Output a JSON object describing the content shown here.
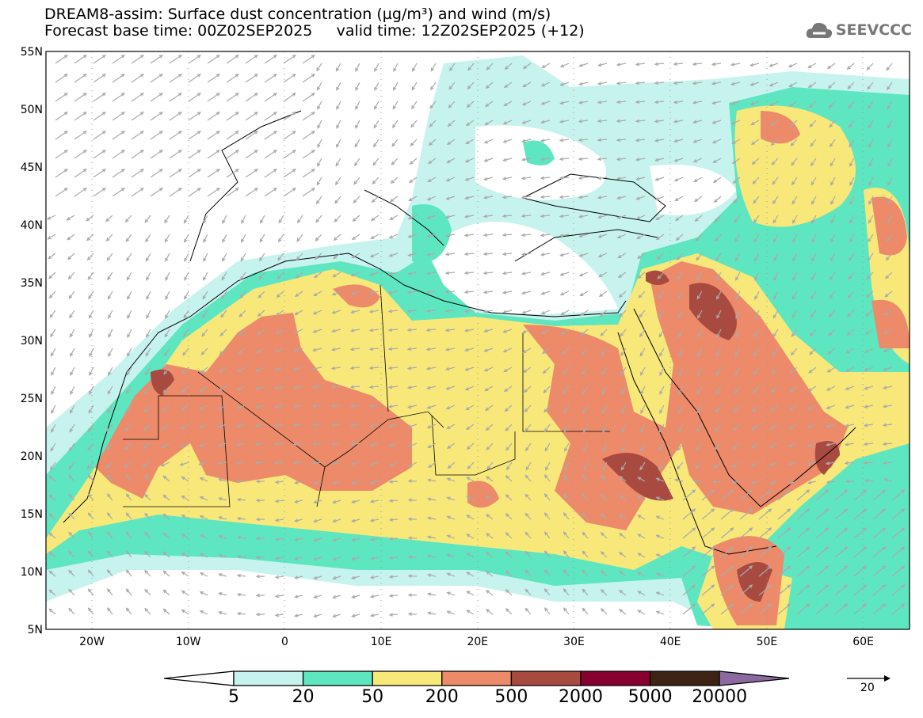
{
  "header": {
    "title": "DREAM8-assim: Surface dust concentration (µg/m³) and wind (m/s)",
    "subtitle": "Forecast base time: 00Z02SEP2025     valid time: 12Z02SEP2025 (+12)"
  },
  "logo": {
    "text": "SEEVCCC",
    "icon": "cloud-icon"
  },
  "map": {
    "lat_labels": [
      "55N",
      "50N",
      "45N",
      "40N",
      "35N",
      "30N",
      "25N",
      "20N",
      "15N",
      "10N",
      "5N"
    ],
    "lon_labels": [
      "20W",
      "10W",
      "0",
      "10E",
      "20E",
      "30E",
      "40E",
      "50E",
      "60E"
    ]
  },
  "colorbar": {
    "labels": [
      "5",
      "20",
      "50",
      "200",
      "500",
      "2000",
      "5000",
      "20000"
    ],
    "colors": [
      "#ffffff",
      "#c6f3ee",
      "#5ee6c0",
      "#f8e87a",
      "#ec8a6a",
      "#a84a40",
      "#860030",
      "#3e2414",
      "#8c6aa0"
    ]
  },
  "wind_reference": {
    "value": "20",
    "icon": "arrow-right-icon"
  }
}
